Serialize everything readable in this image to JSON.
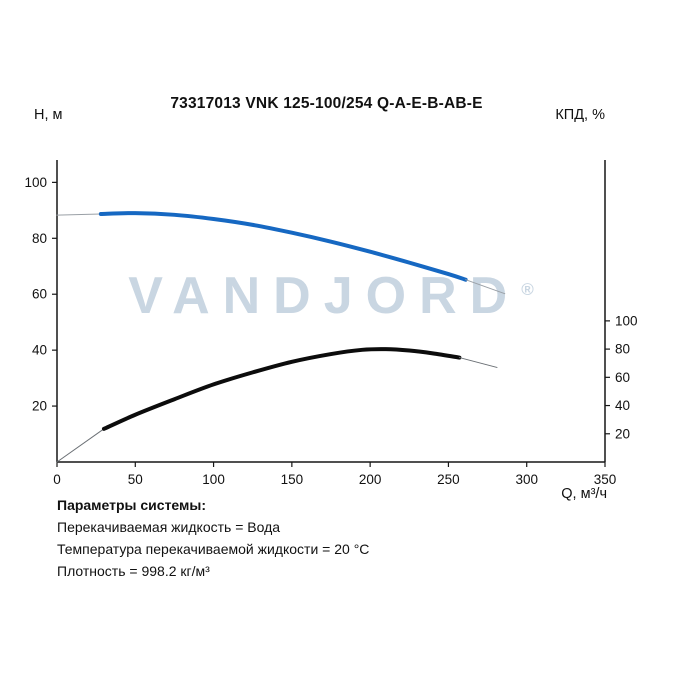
{
  "title": "73317013 VNK 125-100/254 Q-A-E-B-AB-E",
  "left_axis_label": "Н, м",
  "right_axis_label": "КПД, %",
  "x_axis_label": "Q, м³/ч",
  "watermark": {
    "text": "VANDJORD",
    "mark": "®",
    "color": "#c9d6e2"
  },
  "params": {
    "heading": "Параметры системы:",
    "lines": [
      "Перекачиваемая жидкость = Вода",
      "Температура перекачиваемой жидкости = 20 °C",
      "Плотность = 998.2 кг/м³"
    ]
  },
  "chart_data": {
    "type": "line",
    "title": "73317013 VNK 125-100/254 Q-A-E-B-AB-E",
    "xlabel": "Q, м³/ч",
    "ylabel_left": "Н, м",
    "ylabel_right": "КПД, %",
    "xlim": [
      0,
      350
    ],
    "ylim_left": [
      0,
      108
    ],
    "ylim_right": [
      0,
      214
    ],
    "x_ticks": [
      0,
      50,
      100,
      150,
      200,
      250,
      300,
      350
    ],
    "y_ticks_left": [
      20,
      40,
      60,
      80,
      100
    ],
    "y_ticks_right": [
      20,
      40,
      60,
      80,
      100
    ],
    "grid": false,
    "legend": "none",
    "axis_color": "#161616",
    "head_curve_color": "#1668c2",
    "efficiency_curve_color": "#0c0c0c",
    "series": [
      {
        "name": "head-curve-lead-in",
        "axis": "left",
        "color": "#9aa0a6",
        "width": 1,
        "points": [
          [
            0,
            88.3
          ],
          [
            28,
            88.7
          ]
        ]
      },
      {
        "name": "head-curve",
        "axis": "left",
        "color": "#1668c2",
        "width": 4,
        "points": [
          [
            28,
            88.7
          ],
          [
            50,
            89.0
          ],
          [
            75,
            88.4
          ],
          [
            100,
            86.9
          ],
          [
            125,
            84.8
          ],
          [
            150,
            82.0
          ],
          [
            175,
            78.8
          ],
          [
            200,
            75.2
          ],
          [
            225,
            71.3
          ],
          [
            250,
            67.2
          ],
          [
            261,
            65.2
          ]
        ]
      },
      {
        "name": "head-curve-extension",
        "axis": "left",
        "color": "#9aa0a6",
        "width": 1,
        "points": [
          [
            261,
            65.2
          ],
          [
            286,
            60.2
          ]
        ]
      },
      {
        "name": "efficiency-curve-lead-in",
        "axis": "right",
        "color": "#6b7075",
        "width": 1,
        "points": [
          [
            0,
            0
          ],
          [
            30,
            23.5
          ]
        ]
      },
      {
        "name": "efficiency-curve",
        "axis": "right",
        "color": "#0c0c0c",
        "width": 4,
        "points": [
          [
            30,
            23.5
          ],
          [
            50,
            33.5
          ],
          [
            75,
            44.5
          ],
          [
            100,
            55.0
          ],
          [
            125,
            63.5
          ],
          [
            150,
            71.0
          ],
          [
            175,
            76.5
          ],
          [
            195,
            79.5
          ],
          [
            210,
            80.0
          ],
          [
            225,
            79.0
          ],
          [
            240,
            77.0
          ],
          [
            257,
            74.0
          ]
        ]
      },
      {
        "name": "efficiency-curve-extension",
        "axis": "right",
        "color": "#6b7075",
        "width": 1,
        "points": [
          [
            257,
            74.0
          ],
          [
            281,
            67.0
          ]
        ]
      }
    ]
  }
}
